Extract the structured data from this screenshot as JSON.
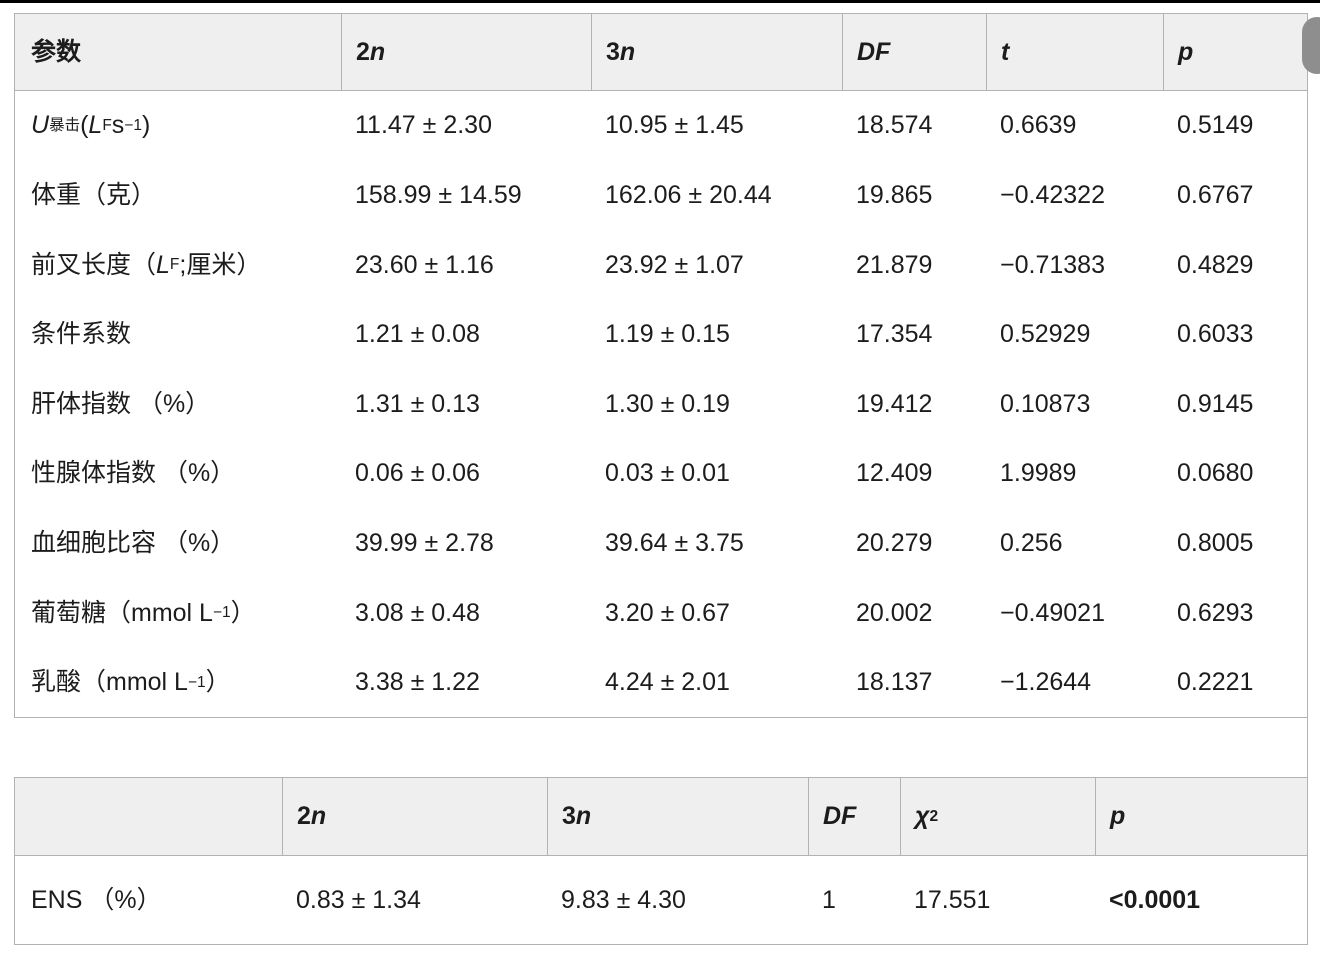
{
  "colors": {
    "text": "#1c1c1c",
    "header_bg": "#efefef",
    "border": "#b2b2b2",
    "top_bar": "#000000",
    "scrollbar": "#8e8e8e"
  },
  "table1": {
    "headers": {
      "param": [
        {
          "t": "参数"
        }
      ],
      "n2": [
        {
          "t": "2"
        },
        {
          "t": "n",
          "i": 1
        }
      ],
      "n3": [
        {
          "t": "3"
        },
        {
          "t": "n",
          "i": 1
        }
      ],
      "df": [
        {
          "t": "DF",
          "i": 1
        }
      ],
      "t": [
        {
          "t": "t",
          "i": 1
        }
      ],
      "p": [
        {
          "t": "p",
          "i": 1
        }
      ]
    },
    "rows": [
      {
        "label": [
          {
            "t": "U",
            "i": 1
          },
          {
            "t": "暴击",
            "sub": 1
          },
          {
            "t": " ("
          },
          {
            "t": "L",
            "i": 1
          },
          {
            "t": "F",
            "sub": 1
          },
          {
            "t": "s"
          },
          {
            "t": "−1",
            "sup": 1
          },
          {
            "t": ")"
          }
        ],
        "n2": "11.47 ± 2.30",
        "n3": "10.95 ± 1.45",
        "df": "18.574",
        "t": "0.6639",
        "p": "0.5149"
      },
      {
        "label": [
          {
            "t": "体重（克）"
          }
        ],
        "n2": "158.99 ± 14.59",
        "n3": "162.06 ± 20.44",
        "df": "19.865",
        "t": "−0.42322",
        "p": "0.6767"
      },
      {
        "label": [
          {
            "t": "前叉长度（"
          },
          {
            "t": "L",
            "i": 1
          },
          {
            "t": "F",
            "sub": 1
          },
          {
            "t": ";厘米）"
          }
        ],
        "n2": "23.60 ± 1.16",
        "n3": "23.92 ± 1.07",
        "df": "21.879",
        "t": "−0.71383",
        "p": "0.4829"
      },
      {
        "label": [
          {
            "t": "条件系数"
          }
        ],
        "n2": "1.21 ± 0.08",
        "n3": "1.19 ± 0.15",
        "df": "17.354",
        "t": "0.52929",
        "p": "0.6033"
      },
      {
        "label": [
          {
            "t": "肝体指数 （%）"
          }
        ],
        "n2": "1.31 ± 0.13",
        "n3": "1.30 ± 0.19",
        "df": "19.412",
        "t": "0.10873",
        "p": "0.9145"
      },
      {
        "label": [
          {
            "t": "性腺体指数 （%）"
          }
        ],
        "n2": "0.06 ± 0.06",
        "n3": "0.03 ± 0.01",
        "df": "12.409",
        "t": "1.9989",
        "p": "0.0680"
      },
      {
        "label": [
          {
            "t": "血细胞比容 （%）"
          }
        ],
        "n2": "39.99 ± 2.78",
        "n3": "39.64 ± 3.75",
        "df": "20.279",
        "t": "0.256",
        "p": "0.8005"
      },
      {
        "label": [
          {
            "t": "葡萄糖（mmol L"
          },
          {
            "t": "−1",
            "sup": 1
          },
          {
            "t": "）"
          }
        ],
        "n2": "3.08 ± 0.48",
        "n3": "3.20 ± 0.67",
        "df": "20.002",
        "t": "−0.49021",
        "p": "0.6293"
      },
      {
        "label": [
          {
            "t": "乳酸（mmol L"
          },
          {
            "t": "−1",
            "sup": 1
          },
          {
            "t": "）"
          }
        ],
        "n2": "3.38 ± 1.22",
        "n3": "4.24 ± 2.01",
        "df": "18.137",
        "t": "−1.2644",
        "p": "0.2221"
      }
    ]
  },
  "table2": {
    "headers": {
      "param": [
        {
          "t": ""
        }
      ],
      "n2": [
        {
          "t": "2"
        },
        {
          "t": "n",
          "i": 1
        }
      ],
      "n3": [
        {
          "t": "3"
        },
        {
          "t": "n",
          "i": 1
        }
      ],
      "df": [
        {
          "t": "DF",
          "i": 1
        }
      ],
      "chi2": [
        {
          "t": "χ",
          "i": 1
        },
        {
          "t": "2",
          "sup": 1
        }
      ],
      "p": [
        {
          "t": "p",
          "i": 1
        }
      ]
    },
    "rows": [
      {
        "label": [
          {
            "t": "ENS （%）"
          }
        ],
        "n2": "0.83 ± 1.34",
        "n3": "9.83 ± 4.30",
        "df": "1",
        "chi2": "17.551",
        "p": "<0.0001"
      }
    ]
  }
}
